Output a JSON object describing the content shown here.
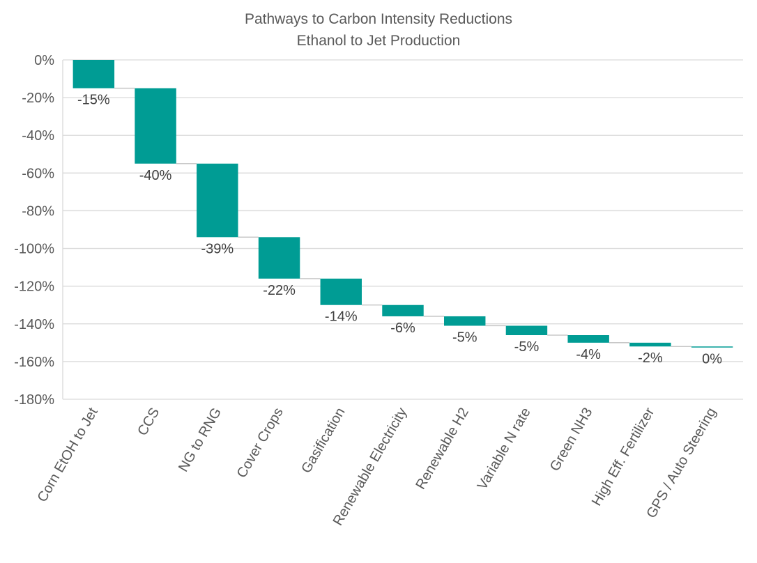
{
  "chart_data": {
    "type": "bar",
    "subtype": "waterfall",
    "title": "Pathways to Carbon Intensity Reductions",
    "subtitle": "Ethanol to Jet Production",
    "categories": [
      "Corn EtOH to Jet",
      "CCS",
      "NG to RNG",
      "Cover Crops",
      "Gasification",
      "Renewable Electricity",
      "Renewable H2",
      "Variable N rate",
      "Green NH3",
      "High Eff. Fertilizer",
      "GPS / Auto Steering"
    ],
    "values": [
      -15,
      -40,
      -39,
      -22,
      -14,
      -6,
      -5,
      -5,
      -4,
      -2,
      0
    ],
    "data_labels": [
      "-15%",
      "-40%",
      "-39%",
      "-22%",
      "-14%",
      "-6%",
      "-5%",
      "-5%",
      "-4%",
      "-2%",
      "0%"
    ],
    "ylim": [
      -180,
      0
    ],
    "yticks": [
      0,
      -20,
      -40,
      -60,
      -80,
      -100,
      -120,
      -140,
      -160,
      -180
    ],
    "ytick_labels": [
      "0%",
      "-20%",
      "-40%",
      "-60%",
      "-80%",
      "-100%",
      "-120%",
      "-140%",
      "-160%",
      "-180%"
    ],
    "grid": true,
    "legend": "none",
    "bar_color": "#009C94",
    "connector_color": "#BFBFBF",
    "grid_color": "#D9D9D9"
  }
}
